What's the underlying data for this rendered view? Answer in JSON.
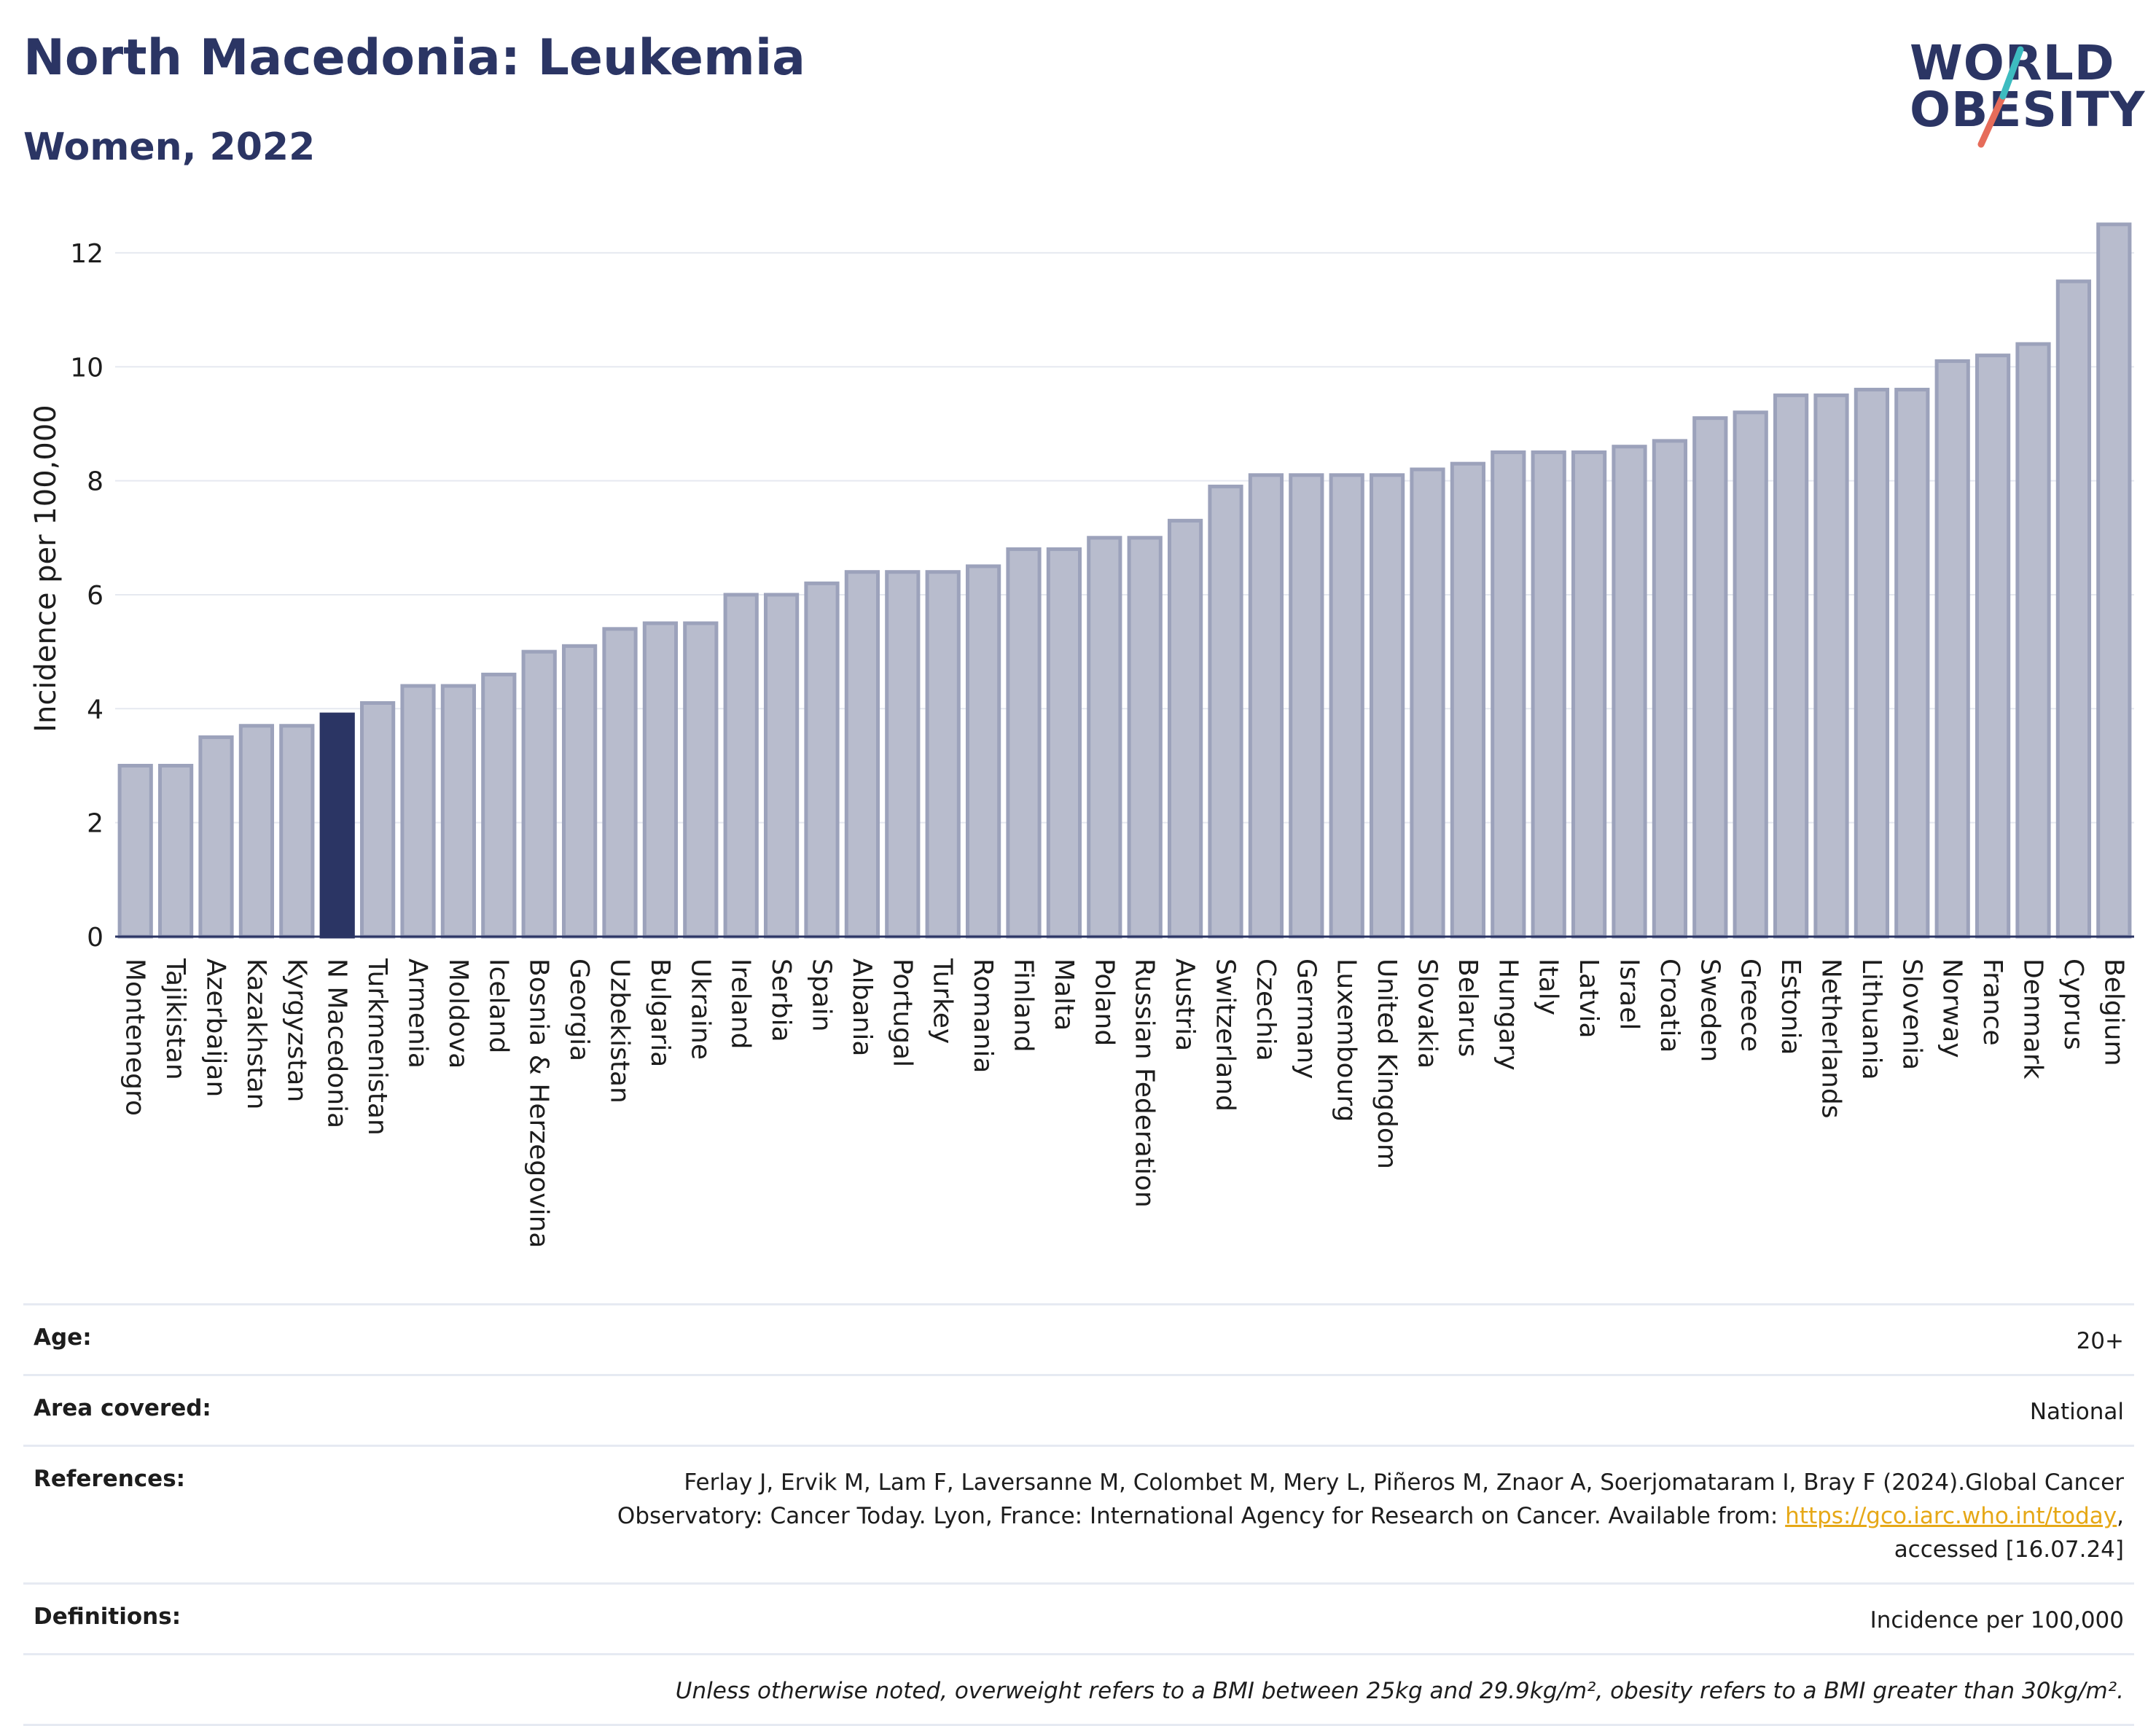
{
  "header": {
    "title": "North Macedonia: Leukemia",
    "subtitle": "Women, 2022",
    "logo_line1": "WORLD",
    "logo_line2": "OBESITY"
  },
  "colors": {
    "bar": "#b8bccd",
    "bar_stroke": "#9ca2bb",
    "highlight": "#2b3564",
    "text": "#2b3564",
    "grid": "#e6e9f0",
    "logo_teal": "#3dbcc0",
    "logo_coral": "#e66c5a",
    "link": "#e6a817"
  },
  "chart_data": {
    "type": "bar",
    "ylabel": "Incidence per 100,000",
    "ylim": [
      0,
      12.6
    ],
    "yticks": [
      0,
      2,
      4,
      6,
      8,
      10,
      12
    ],
    "grid": true,
    "highlight": "N Macedonia",
    "categories": [
      "Montenegro",
      "Tajikistan",
      "Azerbaijan",
      "Kazakhstan",
      "Kyrgyzstan",
      "N Macedonia",
      "Turkmenistan",
      "Armenia",
      "Moldova",
      "Iceland",
      "Bosnia & Herzegovina",
      "Georgia",
      "Uzbekistan",
      "Bulgaria",
      "Ukraine",
      "Ireland",
      "Serbia",
      "Spain",
      "Albania",
      "Portugal",
      "Turkey",
      "Romania",
      "Finland",
      "Malta",
      "Poland",
      "Russian Federation",
      "Austria",
      "Switzerland",
      "Czechia",
      "Germany",
      "Luxembourg",
      "United Kingdom",
      "Slovakia",
      "Belarus",
      "Hungary",
      "Italy",
      "Latvia",
      "Israel",
      "Croatia",
      "Sweden",
      "Greece",
      "Estonia",
      "Netherlands",
      "Lithuania",
      "Slovenia",
      "Norway",
      "France",
      "Denmark",
      "Cyprus",
      "Belgium"
    ],
    "values": [
      3.0,
      3.0,
      3.5,
      3.7,
      3.7,
      3.9,
      4.1,
      4.4,
      4.4,
      4.6,
      5.0,
      5.1,
      5.4,
      5.5,
      5.5,
      6.0,
      6.0,
      6.2,
      6.4,
      6.4,
      6.4,
      6.5,
      6.8,
      6.8,
      7.0,
      7.0,
      7.3,
      7.9,
      8.1,
      8.1,
      8.1,
      8.1,
      8.2,
      8.3,
      8.5,
      8.5,
      8.5,
      8.6,
      8.7,
      9.1,
      9.2,
      9.5,
      9.5,
      9.6,
      9.6,
      10.1,
      10.2,
      10.4,
      11.5,
      12.5
    ]
  },
  "info": {
    "age_label": "Age:",
    "age_value": "20+",
    "area_label": "Area covered:",
    "area_value": "National",
    "references_label": "References:",
    "references_line1": "Ferlay J, Ervik M, Lam F, Laversanne M, Colombet M, Mery L, Piñeros M, Znaor A, Soerjomataram I, Bray F (2024).Global Cancer",
    "references_line2_pre": "Observatory: Cancer Today. Lyon, France: International Agency for Research on Cancer. Available from: ",
    "references_link": "https://gco.iarc.who.int/today",
    "references_line2_post": ",",
    "references_line3": "accessed [16.07.24]",
    "definitions_label": "Definitions:",
    "definitions_value": "Incidence per 100,000",
    "note": "Unless otherwise noted, overweight refers to a BMI between 25kg and 29.9kg/m², obesity refers to a BMI greater than 30kg/m²."
  }
}
